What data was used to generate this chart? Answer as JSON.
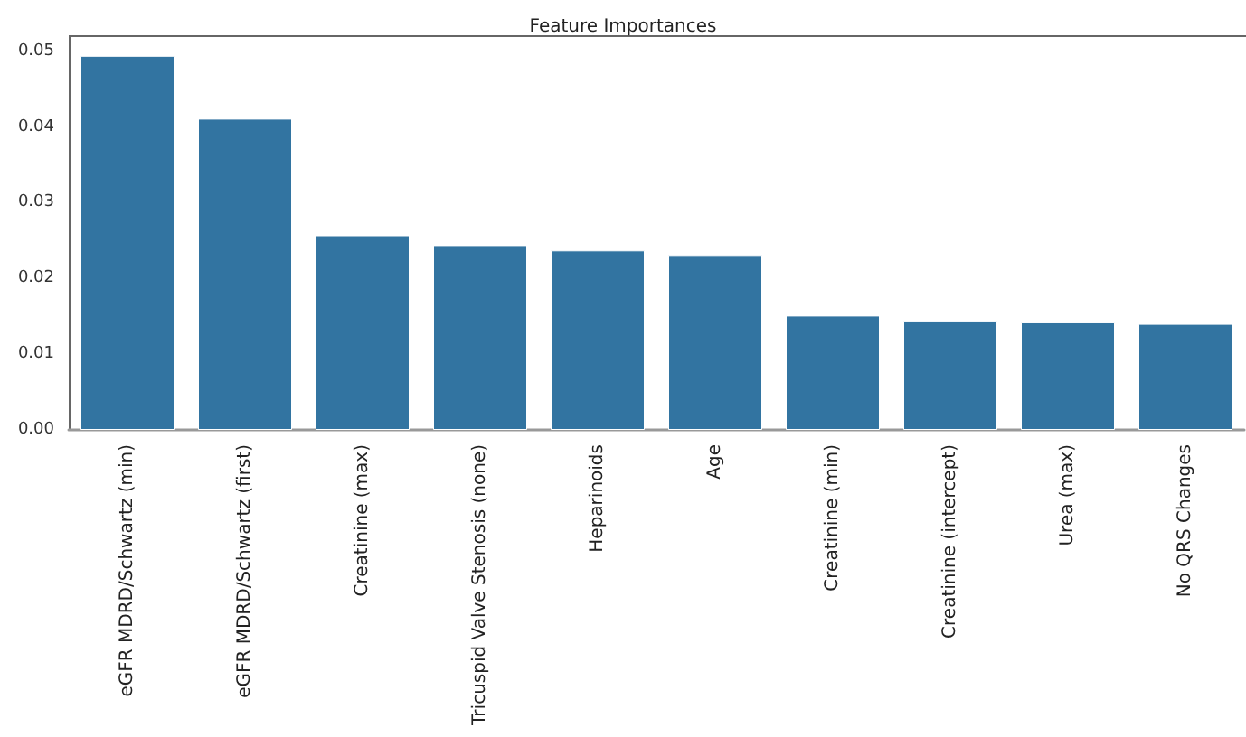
{
  "chart_data": {
    "type": "bar",
    "title": "Feature Importances",
    "categories": [
      "eGFR MDRD/Schwartz (min)",
      "eGFR MDRD/Schwartz (first)",
      "Creatinine (max)",
      "Tricuspid Valve Stenosis (none)",
      "Heparinoids",
      "Age",
      "Creatinine (min)",
      "Creatinine (intercept)",
      "Urea (max)",
      "No QRS Changes"
    ],
    "values": [
      0.0494,
      0.0411,
      0.0257,
      0.0244,
      0.0237,
      0.0231,
      0.0151,
      0.0144,
      0.0142,
      0.014
    ],
    "color": "#3274a1",
    "ylim": [
      0,
      0.052
    ],
    "yticks": [
      {
        "value": 0,
        "label": "0.00"
      },
      0.01,
      0.02,
      0.03,
      0.04,
      0.05
    ],
    "grid": false
  }
}
